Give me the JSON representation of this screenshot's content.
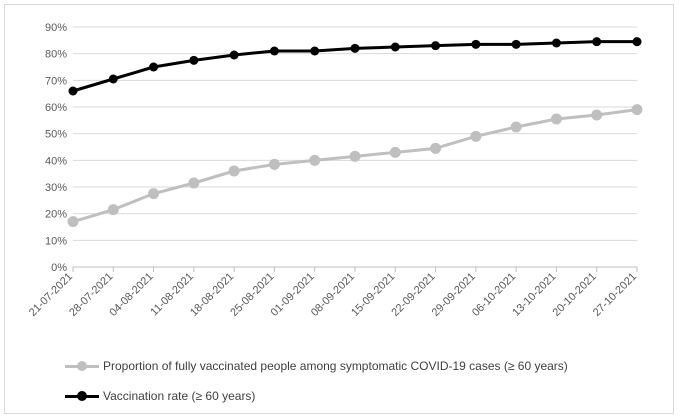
{
  "chart_data": {
    "type": "line",
    "title": "",
    "xlabel": "",
    "ylabel": "",
    "ylim": [
      0,
      90
    ],
    "y_tick_step": 10,
    "y_tick_suffix": "%",
    "grid": "horizontal",
    "legend_position": "bottom",
    "categories": [
      "21-07-2021",
      "28-07-2021",
      "04-08-2021",
      "11-08-2021",
      "18-08-2021",
      "25-08-2021",
      "01-09-2021",
      "08-09-2021",
      "15-09-2021",
      "22-09-2021",
      "29-09-2021",
      "06-10-2021",
      "13-10-2021",
      "20-10-2021",
      "27-10-2021"
    ],
    "series": [
      {
        "name": "Proportion of fully vaccinated people among symptomatic COVID-19 cases (≥ 60 years)",
        "color": "#bfbfbf",
        "values": [
          17,
          21.5,
          27.5,
          31.5,
          36,
          38.5,
          40,
          41.5,
          43,
          44.5,
          49,
          52.5,
          55.5,
          57,
          59
        ]
      },
      {
        "name": "Vaccination rate (≥ 60 years)",
        "color": "#000000",
        "values": [
          66,
          70.5,
          75,
          77.5,
          79.5,
          81,
          81,
          82,
          82.5,
          83,
          83.5,
          83.5,
          84,
          84.5,
          84.5
        ]
      }
    ]
  }
}
